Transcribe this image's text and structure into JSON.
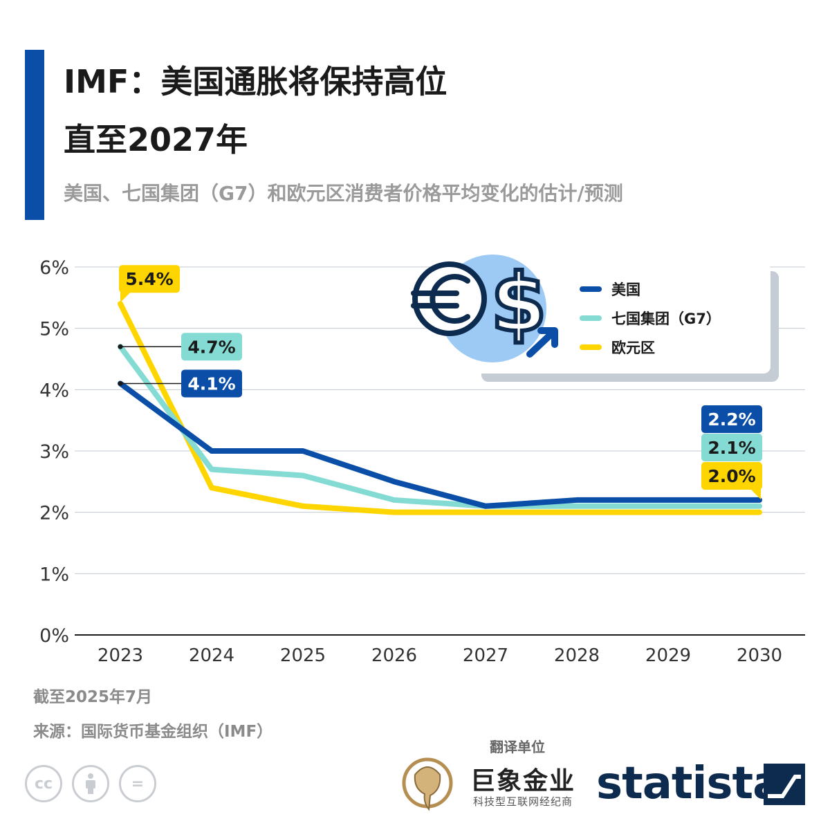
{
  "header": {
    "title_line1": "IMF：美国通胀将保持高位",
    "title_line2": "直至2027年",
    "subtitle": "美国、七国集团（G7）和欧元区消费者价格平均变化的估计/预测"
  },
  "chart_data": {
    "type": "line",
    "x": [
      "2023",
      "2024",
      "2025",
      "2026",
      "2027",
      "2028",
      "2029",
      "2030"
    ],
    "ylim": [
      0,
      6
    ],
    "yticks": [
      "0%",
      "1%",
      "2%",
      "3%",
      "4%",
      "5%",
      "6%"
    ],
    "grid": true,
    "legend_position": "top-right",
    "series": [
      {
        "name": "美国",
        "color": "#0a4ea8",
        "values": [
          4.1,
          3.0,
          3.0,
          2.5,
          2.1,
          2.2,
          2.2,
          2.2
        ]
      },
      {
        "name": "七国集团（G7）",
        "color": "#84dbd3",
        "values": [
          4.7,
          2.7,
          2.6,
          2.2,
          2.1,
          2.1,
          2.1,
          2.1
        ]
      },
      {
        "name": "欧元区",
        "color": "#ffd500",
        "values": [
          5.4,
          2.4,
          2.1,
          2.0,
          2.0,
          2.0,
          2.0,
          2.0
        ]
      }
    ],
    "data_labels": [
      {
        "series": "欧元区",
        "x": "2023",
        "text": "5.4%"
      },
      {
        "series": "七国集团（G7）",
        "x": "2023",
        "text": "4.7%"
      },
      {
        "series": "美国",
        "x": "2023",
        "text": "4.1%"
      },
      {
        "series": "美国",
        "x": "2030",
        "text": "2.2%"
      },
      {
        "series": "七国集团（G7）",
        "x": "2030",
        "text": "2.1%"
      },
      {
        "series": "欧元区",
        "x": "2030",
        "text": "2.0%"
      }
    ]
  },
  "legend_icon": "euro-dollar-up-icon",
  "footer": {
    "date_note": "截至2025年7月",
    "source": "来源：国际货币基金组织（IMF）",
    "translator_label": "翻译单位",
    "partner_name": "巨象金业",
    "partner_tagline": "科技型互联网经纪商",
    "brand": "statista",
    "cc_icons": [
      "cc-icon",
      "attribution-icon",
      "no-derivatives-icon"
    ]
  }
}
